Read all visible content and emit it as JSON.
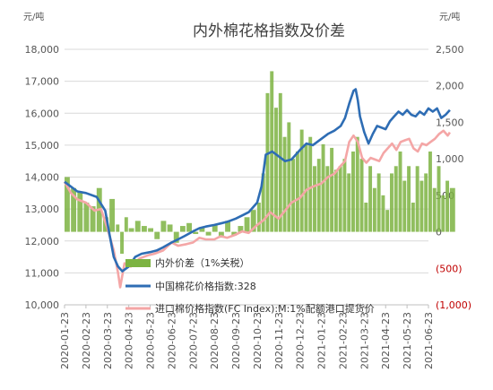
{
  "chart_data": {
    "type": "line",
    "title": "内外棉花格指数及价差",
    "left_unit": "元/吨",
    "right_unit": "元/吨",
    "y_left": {
      "min": 10000,
      "max": 18000,
      "ticks": [
        "10,000",
        "11,000",
        "12,000",
        "13,000",
        "14,000",
        "15,000",
        "16,000",
        "17,000",
        "18,000"
      ]
    },
    "y_right": {
      "min": -1000,
      "max": 2500,
      "ticks": [
        {
          "value": -1000,
          "label": "(1,000)",
          "color": "#c00000"
        },
        {
          "value": -500,
          "label": "(500)",
          "color": "#c00000"
        },
        {
          "value": 0,
          "label": "0",
          "color": "#555555"
        },
        {
          "value": 500,
          "label": "500",
          "color": "#555555"
        },
        {
          "value": 1000,
          "label": "1,000",
          "color": "#555555"
        },
        {
          "value": 1500,
          "label": "1,500",
          "color": "#555555"
        },
        {
          "value": 2000,
          "label": "2,000",
          "color": "#555555"
        },
        {
          "value": 2500,
          "label": "2,500",
          "color": "#555555"
        }
      ]
    },
    "x_labels": [
      "2020-01-23",
      "2020-02-23",
      "2020-03-23",
      "2020-04-23",
      "2020-05-23",
      "2020-06-23",
      "2020-07-23",
      "2020-08-23",
      "2020-09-23",
      "2020-10-23",
      "2020-11-23",
      "2020-12-23",
      "2021-01-23",
      "2021-02-23",
      "2021-03-23",
      "2021-04-23",
      "2021-05-23",
      "2021-06-23"
    ],
    "legend": [
      {
        "label": "内外价差（1%关税）",
        "color": "#7cb342",
        "kind": "area"
      },
      {
        "label": "中国棉花价格指数:328",
        "color": "#2e6db4",
        "kind": "line"
      },
      {
        "label": "进口棉价格指数(FC Index):M:1%配额港口提货价",
        "color": "#f4a6a6",
        "kind": "line"
      }
    ],
    "series": [
      {
        "name": "中国棉花价格指数:328",
        "axis": "left",
        "color": "#2e6db4",
        "points": [
          [
            0,
            13850
          ],
          [
            0.3,
            13700
          ],
          [
            0.6,
            13550
          ],
          [
            1.0,
            13500
          ],
          [
            1.5,
            13380
          ],
          [
            1.9,
            12950
          ],
          [
            2.1,
            12200
          ],
          [
            2.3,
            11500
          ],
          [
            2.5,
            11200
          ],
          [
            2.7,
            11050
          ],
          [
            3.0,
            11200
          ],
          [
            3.3,
            11500
          ],
          [
            3.6,
            11600
          ],
          [
            4.0,
            11650
          ],
          [
            4.3,
            11700
          ],
          [
            4.6,
            11800
          ],
          [
            5.0,
            11950
          ],
          [
            5.3,
            12050
          ],
          [
            5.6,
            12150
          ],
          [
            6.0,
            12300
          ],
          [
            6.3,
            12400
          ],
          [
            6.6,
            12450
          ],
          [
            7.0,
            12500
          ],
          [
            7.3,
            12550
          ],
          [
            7.6,
            12600
          ],
          [
            8.0,
            12700
          ],
          [
            8.3,
            12800
          ],
          [
            8.6,
            12900
          ],
          [
            9.0,
            13200
          ],
          [
            9.2,
            13700
          ],
          [
            9.4,
            14700
          ],
          [
            9.7,
            14800
          ],
          [
            10.0,
            14650
          ],
          [
            10.3,
            14500
          ],
          [
            10.6,
            14550
          ],
          [
            11.0,
            14850
          ],
          [
            11.3,
            15050
          ],
          [
            11.6,
            15000
          ],
          [
            12.0,
            15200
          ],
          [
            12.3,
            15350
          ],
          [
            12.6,
            15450
          ],
          [
            12.9,
            15600
          ],
          [
            13.1,
            15850
          ],
          [
            13.3,
            16300
          ],
          [
            13.5,
            16700
          ],
          [
            13.6,
            16750
          ],
          [
            13.7,
            16400
          ],
          [
            13.8,
            15900
          ],
          [
            14.0,
            15400
          ],
          [
            14.2,
            15050
          ],
          [
            14.4,
            15350
          ],
          [
            14.6,
            15600
          ],
          [
            14.8,
            15550
          ],
          [
            15.0,
            15500
          ],
          [
            15.2,
            15750
          ],
          [
            15.4,
            15900
          ],
          [
            15.6,
            16050
          ],
          [
            15.8,
            15950
          ],
          [
            16.0,
            16100
          ],
          [
            16.2,
            15950
          ],
          [
            16.4,
            15900
          ],
          [
            16.6,
            16050
          ],
          [
            16.8,
            15950
          ],
          [
            17.0,
            16150
          ],
          [
            17.2,
            16050
          ],
          [
            17.4,
            16150
          ],
          [
            17.6,
            15850
          ],
          [
            17.8,
            15950
          ],
          [
            18.0,
            16100
          ]
        ]
      },
      {
        "name": "进口棉价格指数(FC Index):M:1%配额港口提货价",
        "axis": "left",
        "color": "#f4a6a6",
        "points": [
          [
            0,
            13850
          ],
          [
            0.3,
            13500
          ],
          [
            0.6,
            13300
          ],
          [
            1.0,
            13200
          ],
          [
            1.4,
            12950
          ],
          [
            1.7,
            13000
          ],
          [
            2.0,
            12400
          ],
          [
            2.3,
            11700
          ],
          [
            2.5,
            11000
          ],
          [
            2.6,
            10550
          ],
          [
            2.8,
            11300
          ],
          [
            3.1,
            11200
          ],
          [
            3.5,
            11450
          ],
          [
            3.9,
            11550
          ],
          [
            4.2,
            11600
          ],
          [
            4.6,
            11700
          ],
          [
            5.0,
            11950
          ],
          [
            5.3,
            11850
          ],
          [
            5.7,
            11900
          ],
          [
            6.0,
            11950
          ],
          [
            6.3,
            12100
          ],
          [
            6.6,
            12050
          ],
          [
            7.0,
            12050
          ],
          [
            7.3,
            12150
          ],
          [
            7.6,
            12100
          ],
          [
            8.0,
            12200
          ],
          [
            8.3,
            12300
          ],
          [
            8.6,
            12250
          ],
          [
            9.0,
            12500
          ],
          [
            9.3,
            12650
          ],
          [
            9.6,
            12900
          ],
          [
            10.0,
            12700
          ],
          [
            10.3,
            12950
          ],
          [
            10.6,
            13200
          ],
          [
            11.0,
            13350
          ],
          [
            11.3,
            13600
          ],
          [
            11.6,
            13700
          ],
          [
            12.0,
            13800
          ],
          [
            12.3,
            14000
          ],
          [
            12.6,
            14100
          ],
          [
            12.9,
            14350
          ],
          [
            13.1,
            14500
          ],
          [
            13.3,
            15100
          ],
          [
            13.5,
            15300
          ],
          [
            13.7,
            15100
          ],
          [
            13.9,
            14600
          ],
          [
            14.1,
            14450
          ],
          [
            14.3,
            14600
          ],
          [
            14.5,
            14550
          ],
          [
            14.7,
            14500
          ],
          [
            14.9,
            14750
          ],
          [
            15.1,
            14900
          ],
          [
            15.3,
            15050
          ],
          [
            15.5,
            14850
          ],
          [
            15.7,
            15100
          ],
          [
            15.9,
            15150
          ],
          [
            16.1,
            15200
          ],
          [
            16.3,
            14900
          ],
          [
            16.5,
            14800
          ],
          [
            16.7,
            15050
          ],
          [
            16.9,
            15000
          ],
          [
            17.1,
            15100
          ],
          [
            17.3,
            15200
          ],
          [
            17.5,
            15350
          ],
          [
            17.7,
            15450
          ],
          [
            17.9,
            15300
          ],
          [
            18.0,
            15400
          ]
        ]
      },
      {
        "name": "内外价差（1%关税）",
        "axis": "right",
        "color": "#7cb342",
        "points": [
          [
            0,
            750
          ],
          [
            0.3,
            600
          ],
          [
            0.6,
            550
          ],
          [
            0.9,
            400
          ],
          [
            1.2,
            350
          ],
          [
            1.5,
            600
          ],
          [
            1.8,
            200
          ],
          [
            2.1,
            450
          ],
          [
            2.4,
            100
          ],
          [
            2.6,
            -300
          ],
          [
            2.8,
            200
          ],
          [
            3.0,
            50
          ],
          [
            3.3,
            150
          ],
          [
            3.6,
            80
          ],
          [
            3.9,
            50
          ],
          [
            4.2,
            -100
          ],
          [
            4.5,
            150
          ],
          [
            4.8,
            100
          ],
          [
            5.1,
            -150
          ],
          [
            5.4,
            80
          ],
          [
            5.7,
            120
          ],
          [
            6.0,
            -30
          ],
          [
            6.3,
            50
          ],
          [
            6.6,
            -50
          ],
          [
            6.9,
            100
          ],
          [
            7.2,
            -80
          ],
          [
            7.5,
            150
          ],
          [
            7.8,
            -50
          ],
          [
            8.1,
            80
          ],
          [
            8.4,
            200
          ],
          [
            8.7,
            300
          ],
          [
            9.0,
            400
          ],
          [
            9.2,
            800
          ],
          [
            9.4,
            1900
          ],
          [
            9.6,
            2200
          ],
          [
            9.8,
            1700
          ],
          [
            10.0,
            1900
          ],
          [
            10.2,
            1300
          ],
          [
            10.4,
            1500
          ],
          [
            10.6,
            1000
          ],
          [
            10.8,
            1100
          ],
          [
            11.0,
            1400
          ],
          [
            11.2,
            1200
          ],
          [
            11.4,
            1300
          ],
          [
            11.6,
            900
          ],
          [
            11.8,
            1000
          ],
          [
            12.0,
            1200
          ],
          [
            12.2,
            900
          ],
          [
            12.4,
            1150
          ],
          [
            12.6,
            850
          ],
          [
            12.8,
            900
          ],
          [
            13.0,
            1000
          ],
          [
            13.2,
            800
          ],
          [
            13.4,
            1100
          ],
          [
            13.6,
            1300
          ],
          [
            13.8,
            1000
          ],
          [
            14.0,
            400
          ],
          [
            14.2,
            900
          ],
          [
            14.4,
            600
          ],
          [
            14.6,
            800
          ],
          [
            14.8,
            500
          ],
          [
            15.0,
            300
          ],
          [
            15.2,
            800
          ],
          [
            15.4,
            900
          ],
          [
            15.6,
            1100
          ],
          [
            15.8,
            700
          ],
          [
            16.0,
            900
          ],
          [
            16.2,
            400
          ],
          [
            16.4,
            900
          ],
          [
            16.6,
            700
          ],
          [
            16.8,
            800
          ],
          [
            17.0,
            1100
          ],
          [
            17.2,
            600
          ],
          [
            17.4,
            900
          ],
          [
            17.6,
            500
          ],
          [
            17.8,
            700
          ],
          [
            18.0,
            600
          ]
        ]
      }
    ]
  }
}
